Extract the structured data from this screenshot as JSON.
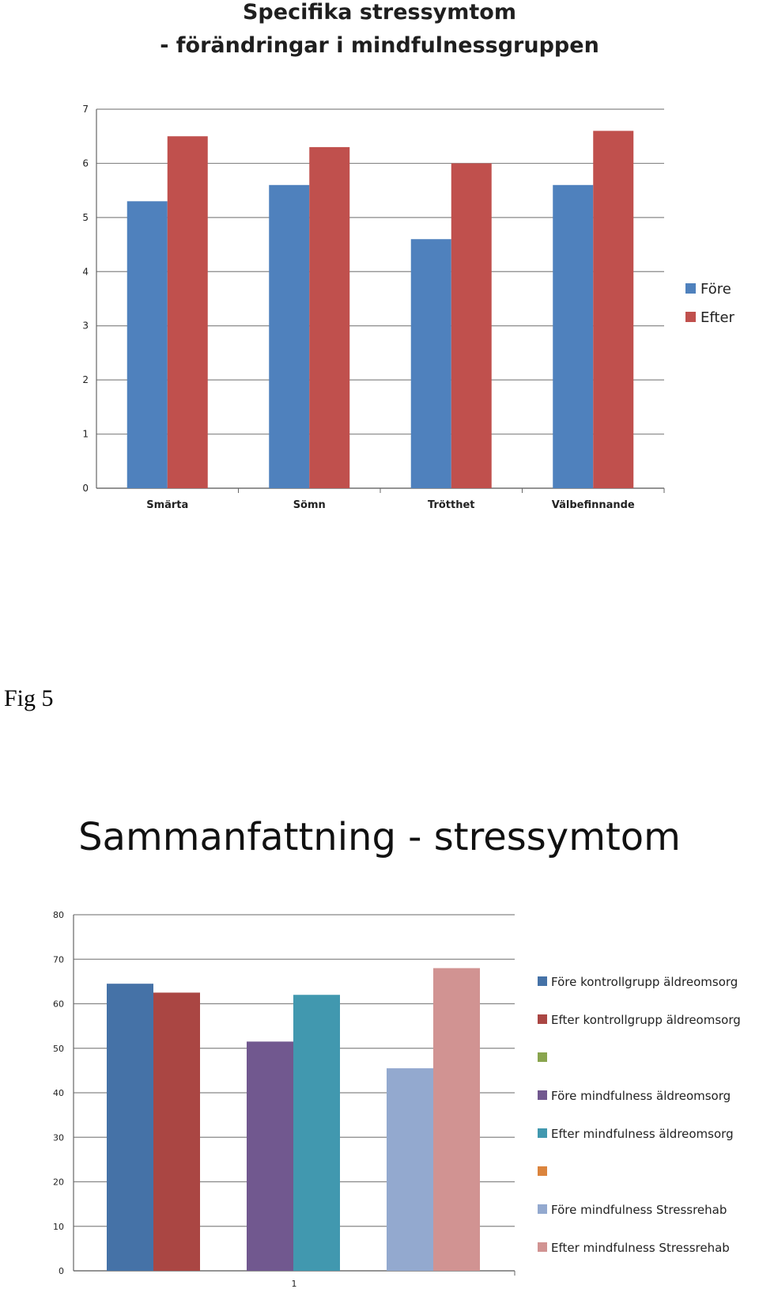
{
  "fig_label": "Fig 5",
  "chart_data": [
    {
      "type": "bar",
      "title": "Specifika stressymtom",
      "subtitle": "- förändringar i mindfulnessgruppen",
      "categories": [
        "Smärta",
        "Sömn",
        "Trötthet",
        "Välbefinnande"
      ],
      "series": [
        {
          "name": "Före",
          "color": "#4f81bd",
          "values": [
            5.3,
            5.6,
            4.6,
            5.6
          ]
        },
        {
          "name": "Efter",
          "color": "#c0504d",
          "values": [
            6.5,
            6.3,
            6.0,
            6.6
          ]
        }
      ],
      "xlabel": "",
      "ylabel": "",
      "ylim": [
        0,
        7
      ],
      "yticks": [
        "0",
        "1",
        "2",
        "3",
        "4",
        "5",
        "6",
        "7"
      ],
      "grid": true,
      "legend_position": "right"
    },
    {
      "type": "bar",
      "title": "Sammanfattning - stressymtom",
      "categories": [
        "1"
      ],
      "series": [
        {
          "name": "Före kontrollgrupp äldreomsorg",
          "color": "#4572a7",
          "values": [
            64.5
          ]
        },
        {
          "name": "Efter kontrollgrupp äldreomsorg",
          "color": "#aa4643",
          "values": [
            62.5
          ]
        },
        {
          "name": "",
          "color": "#89a54e",
          "values": [
            null
          ]
        },
        {
          "name": "Före mindfulness äldreomsorg",
          "color": "#71588f",
          "values": [
            51.5
          ]
        },
        {
          "name": "Efter mindfulness äldreomsorg",
          "color": "#4198af",
          "values": [
            62.0
          ]
        },
        {
          "name": "",
          "color": "#db843d",
          "values": [
            null
          ]
        },
        {
          "name": "Före mindfulness Stressrehab",
          "color": "#93a9cf",
          "values": [
            45.5
          ]
        },
        {
          "name": "Efter mindfulness Stressrehab",
          "color": "#d19392",
          "values": [
            68.0
          ]
        }
      ],
      "xlabel": "",
      "ylabel": "",
      "ylim": [
        0,
        80
      ],
      "yticks": [
        "0",
        "10",
        "20",
        "30",
        "40",
        "50",
        "60",
        "70",
        "80"
      ],
      "grid": true,
      "legend_position": "right"
    }
  ]
}
